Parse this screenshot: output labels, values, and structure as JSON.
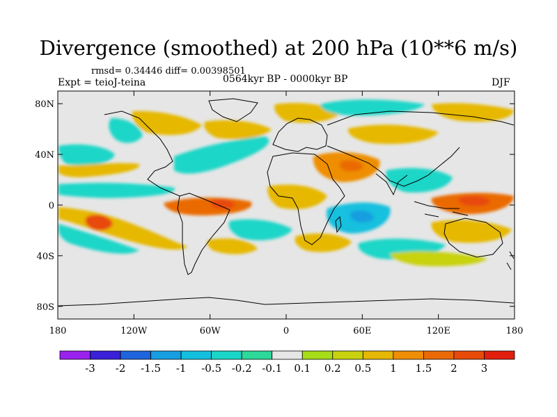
{
  "header": {
    "title": "Divergence (smoothed) at 200 hPa (10**6 m/s)",
    "stats": "rmsd= 0.34446 diff= 0.00398501",
    "period": "0564kyr BP - 0000kyr BP",
    "experiment": "Expt = teioJ-teina",
    "season": "DJF"
  },
  "chart_data": {
    "type": "heatmap",
    "title": "Divergence (smoothed) at 200 hPa (10**6 m/s)",
    "units": "10**6 m/s",
    "variable": "Divergence at 200 hPa",
    "x_axis": {
      "range": [
        -180,
        180
      ],
      "ticks": [
        {
          "value": -180,
          "label": "180"
        },
        {
          "value": -120,
          "label": "120W"
        },
        {
          "value": -60,
          "label": "60W"
        },
        {
          "value": 0,
          "label": "0"
        },
        {
          "value": 60,
          "label": "60E"
        },
        {
          "value": 120,
          "label": "120E"
        },
        {
          "value": 180,
          "label": "180"
        }
      ]
    },
    "y_axis": {
      "range": [
        -90,
        90
      ],
      "ticks": [
        {
          "value": 80,
          "label": "80N"
        },
        {
          "value": 40,
          "label": "40N"
        },
        {
          "value": 0,
          "label": "0"
        },
        {
          "value": -40,
          "label": "40S"
        },
        {
          "value": -80,
          "label": "80S"
        }
      ]
    },
    "colorbar": {
      "colors": [
        "#9a22ee",
        "#3a20d8",
        "#1e64dc",
        "#169ee0",
        "#12c0de",
        "#1ad6c8",
        "#2cd89a",
        "#e6e6e6",
        "#a6dc18",
        "#c8d20e",
        "#e6b806",
        "#ee8e06",
        "#ea6a06",
        "#e84a0a",
        "#e21e0e"
      ],
      "labels": [
        {
          "boundary": 1,
          "text": "-3"
        },
        {
          "boundary": 2,
          "text": "-2"
        },
        {
          "boundary": 3,
          "text": "-1.5"
        },
        {
          "boundary": 4,
          "text": "-1"
        },
        {
          "boundary": 5,
          "text": "-0.5"
        },
        {
          "boundary": 6,
          "text": "-0.2"
        },
        {
          "boundary": 7,
          "text": "-0.1"
        },
        {
          "boundary": 8,
          "text": "0.1"
        },
        {
          "boundary": 9,
          "text": "0.2"
        },
        {
          "boundary": 10,
          "text": "0.5"
        },
        {
          "boundary": 11,
          "text": "1"
        },
        {
          "boundary": 12,
          "text": "1.5"
        },
        {
          "boundary": 13,
          "text": "2"
        },
        {
          "boundary": 14,
          "text": "3"
        }
      ]
    },
    "regions": [
      {
        "name": "equatorial-atlantic-positive",
        "lon": -35,
        "lat": 0,
        "level": 12
      },
      {
        "name": "south-pacific-positive",
        "lon": -140,
        "lat": -15,
        "level": 13
      },
      {
        "name": "south-pacific-positive-band",
        "lon": -115,
        "lat": -20,
        "level": 10
      },
      {
        "name": "north-pacific-negative",
        "lon": -170,
        "lat": 32,
        "level": 5
      },
      {
        "name": "tropical-pacific-negative",
        "lon": -130,
        "lat": 15,
        "level": 5
      },
      {
        "name": "tropical-pacific-negative-2",
        "lon": -160,
        "lat": 15,
        "level": 4
      },
      {
        "name": "arctic-negative",
        "lon": 90,
        "lat": 80,
        "level": 5
      },
      {
        "name": "north-atlantic-negative",
        "lon": -40,
        "lat": 40,
        "level": 5
      },
      {
        "name": "indian-ocean-negative",
        "lon": 75,
        "lat": 0,
        "level": 4
      },
      {
        "name": "west-pacific-warm-pool-positive",
        "lon": 150,
        "lat": 0,
        "level": 12
      },
      {
        "name": "west-pacific-negative",
        "lon": 120,
        "lat": 8,
        "level": 5
      },
      {
        "name": "arabia-positive",
        "lon": 40,
        "lat": 25,
        "level": 11
      },
      {
        "name": "south-atlantic-negative",
        "lon": -20,
        "lat": -30,
        "level": 5
      },
      {
        "name": "southern-indian-ocean-negative",
        "lon": 80,
        "lat": -38,
        "level": 5
      },
      {
        "name": "southern-indian-ocean-positive",
        "lon": 40,
        "lat": -38,
        "level": 10
      },
      {
        "name": "siberia-positive",
        "lon": 100,
        "lat": 50,
        "level": 10
      },
      {
        "name": "north-america-positive",
        "lon": -105,
        "lat": 55,
        "level": 10
      },
      {
        "name": "europe-positive",
        "lon": 10,
        "lat": 60,
        "level": 10
      },
      {
        "name": "central-africa-positive",
        "lon": 10,
        "lat": 10,
        "level": 10
      },
      {
        "name": "south-pacific-negative",
        "lon": -70,
        "lat": -45,
        "level": 5
      },
      {
        "name": "australia-positive",
        "lon": 140,
        "lat": -25,
        "level": 10
      }
    ]
  }
}
